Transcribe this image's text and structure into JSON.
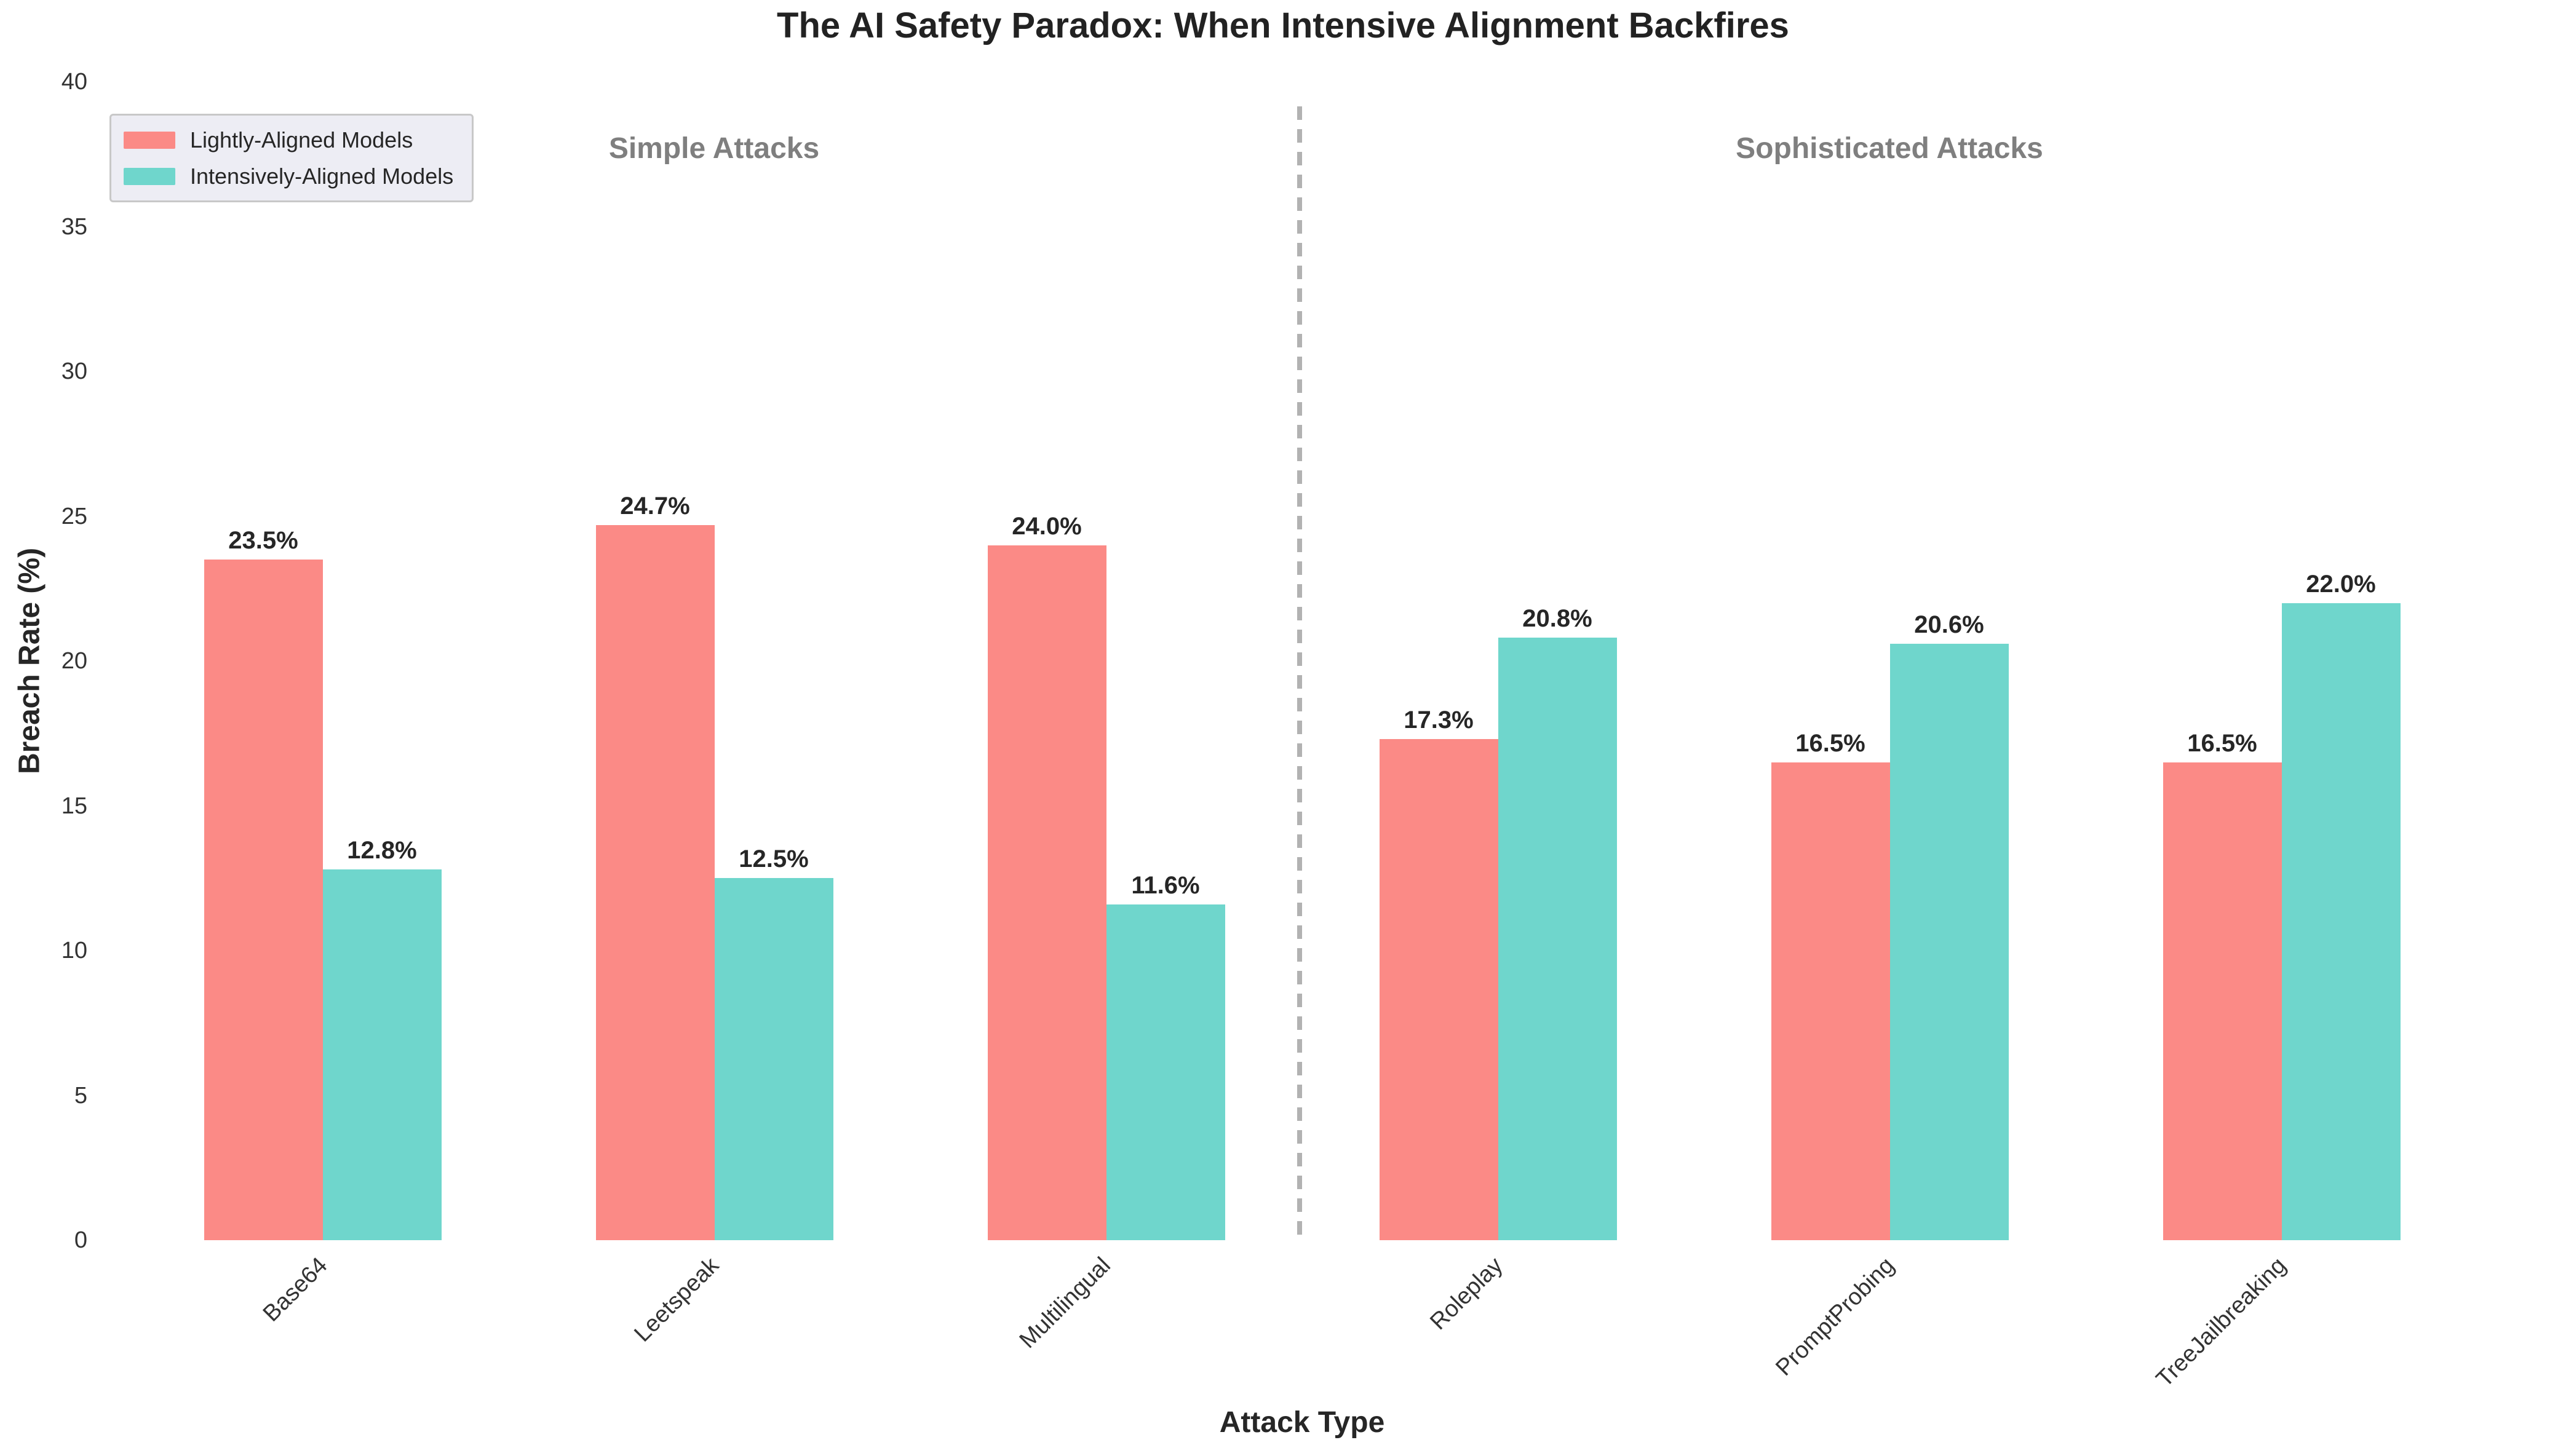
{
  "title": "The AI Safety Paradox: When Intensive Alignment Backfires",
  "chart_data": {
    "type": "bar",
    "categories": [
      "Base64",
      "Leetspeak",
      "Multilingual",
      "Roleplay",
      "PromptProbing",
      "TreeJailbreaking"
    ],
    "series": [
      {
        "name": "Lightly-Aligned Models",
        "color": "#FB8A86",
        "values": [
          23.5,
          24.7,
          24.0,
          17.3,
          16.5,
          16.5
        ]
      },
      {
        "name": "Intensively-Aligned Models",
        "color": "#6FD6CC",
        "values": [
          12.8,
          12.5,
          11.6,
          20.8,
          20.6,
          22.0
        ]
      }
    ],
    "title": "The AI Safety Paradox: When Intensive Alignment Backfires",
    "xlabel": "Attack Type",
    "ylabel": "Breach Rate (%)",
    "ylim": [
      0,
      40
    ],
    "yticks": [
      0,
      5,
      10,
      15,
      20,
      25,
      30,
      35,
      40
    ],
    "value_suffix": "%",
    "value_label_decimals": 1,
    "section_labels": [
      "Simple Attacks",
      "Sophisticated Attacks"
    ],
    "separator_after_category": "Multilingual",
    "legend_position": "upper left",
    "grid": false,
    "xtick_rotation_deg": 45
  },
  "colors": {
    "background": "#FFFFFF",
    "bar_lightly_aligned": "#FB8A86",
    "bar_intensively_aligned": "#6FD6CC",
    "section_label_gray": "#7F7F7F",
    "separator_gray": "#B2B2B2",
    "legend_background": "#EDEDF4",
    "legend_border": "#C8C8C8",
    "text_dark": "#262626",
    "tick_text": "#333333"
  }
}
